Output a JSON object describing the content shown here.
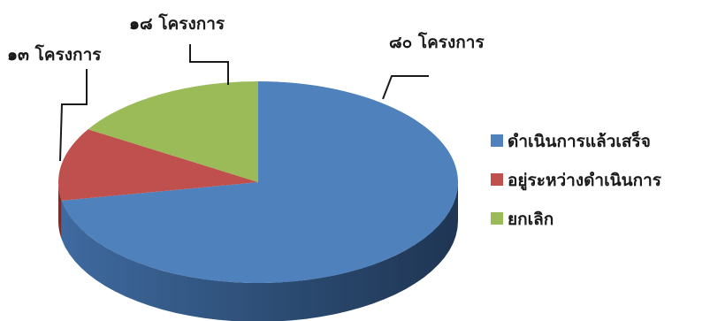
{
  "chart_data": {
    "type": "pie",
    "title": "",
    "categories": [
      "ดำเนินการแล้วเสร็จ",
      "อยู่ระหว่างดำเนินการ",
      "ยกเลิก"
    ],
    "values": [
      80,
      13,
      18
    ],
    "data_labels": [
      "๘๐ โครงการ",
      "๑๓ โครงการ",
      "๑๘ โครงการ"
    ],
    "colors": [
      "#4F81BD",
      "#C0504D",
      "#9BBB59"
    ],
    "side_colors": [
      "#2E4F78",
      "#7A2E2C",
      "#5E7534"
    ],
    "legend_position": "right",
    "style": "3d"
  }
}
